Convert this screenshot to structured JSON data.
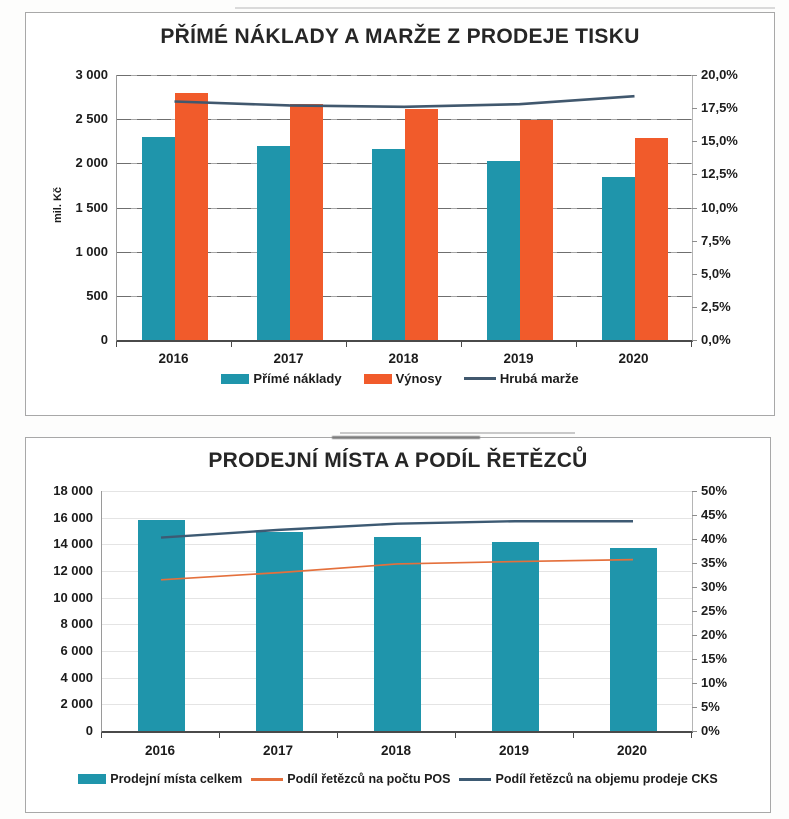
{
  "chart_data": [
    {
      "type": "bar",
      "combo": "bar+line",
      "title": "PŘÍMÉ NÁKLADY A MARŽE Z PRODEJE TISKU",
      "ylabel_left": "mil. Kč",
      "categories": [
        "2016",
        "2017",
        "2018",
        "2019",
        "2020"
      ],
      "series": [
        {
          "name": "Přímé náklady",
          "kind": "bar",
          "axis": "left",
          "color": "#1f95ab",
          "values": [
            2300,
            2200,
            2160,
            2030,
            1850
          ]
        },
        {
          "name": "Výnosy",
          "kind": "bar",
          "axis": "left",
          "color": "#f15b2b",
          "values": [
            2800,
            2670,
            2620,
            2490,
            2290
          ]
        },
        {
          "name": "Hrubá marže",
          "kind": "line",
          "axis": "right",
          "color": "#41586e",
          "values": [
            18.0,
            17.7,
            17.6,
            17.8,
            18.4
          ]
        }
      ],
      "axis_left": {
        "min": 0,
        "max": 3000,
        "step": 500,
        "ticks": [
          "3 000",
          "2 500",
          "2 000",
          "1 500",
          "1 000",
          "500",
          "0"
        ]
      },
      "axis_right": {
        "min": 0,
        "max": 20,
        "step": 2.5,
        "ticks": [
          "20,0%",
          "17,5%",
          "15,0%",
          "12,5%",
          "10,0%",
          "7,5%",
          "5,0%",
          "2,5%",
          "0,0%"
        ]
      },
      "legend_position": "bottom",
      "grid": true
    },
    {
      "type": "bar",
      "combo": "bar+line",
      "title": "PRODEJNÍ MÍSTA A PODÍL ŘETĚZCŮ",
      "ylabel_left": "",
      "categories": [
        "2016",
        "2017",
        "2018",
        "2019",
        "2020"
      ],
      "series": [
        {
          "name": "Prodejní místa celkem",
          "kind": "bar",
          "axis": "left",
          "color": "#1f95ab",
          "values": [
            15850,
            14900,
            14550,
            14200,
            13700
          ]
        },
        {
          "name": "Podíl řetězců na počtu POS",
          "kind": "line",
          "axis": "right",
          "color": "#e4703c",
          "values": [
            31.5,
            33.0,
            34.8,
            35.3,
            35.7
          ]
        },
        {
          "name": "Podíl řetězců na objemu prodeje CKS",
          "kind": "line",
          "axis": "right",
          "color": "#3d5a73",
          "values": [
            40.3,
            41.9,
            43.2,
            43.7,
            43.7
          ]
        }
      ],
      "axis_left": {
        "min": 0,
        "max": 18000,
        "step": 2000,
        "ticks": [
          "18 000",
          "16 000",
          "14 000",
          "12 000",
          "10 000",
          "8 000",
          "6 000",
          "4 000",
          "2 000",
          "0"
        ]
      },
      "axis_right": {
        "min": 0,
        "max": 50,
        "step": 5,
        "ticks": [
          "50%",
          "45%",
          "40%",
          "35%",
          "30%",
          "25%",
          "20%",
          "15%",
          "10%",
          "5%",
          "0%"
        ]
      },
      "legend_position": "bottom",
      "grid": true
    }
  ]
}
